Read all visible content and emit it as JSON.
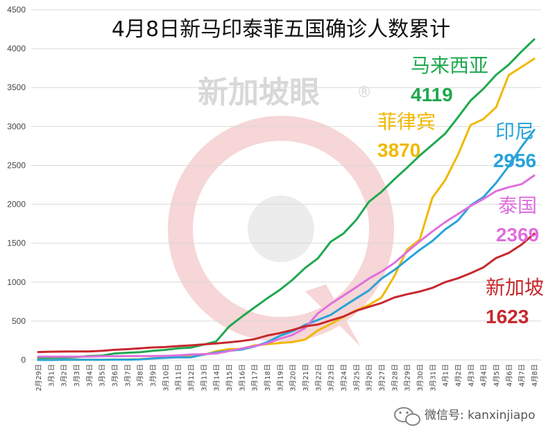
{
  "chart_data": {
    "type": "line",
    "title": "4月8日新马印泰菲五国确诊人数累计",
    "ylim": [
      0,
      4500
    ],
    "yticks": [
      0,
      500,
      1000,
      1500,
      2000,
      2500,
      3000,
      3500,
      4000,
      4500
    ],
    "categories": [
      "2月29日",
      "3月1日",
      "3月2日",
      "3月3日",
      "3月4日",
      "3月5日",
      "3月6日",
      "3月7日",
      "3月8日",
      "3月9日",
      "3月10日",
      "3月11日",
      "3月12日",
      "3月13日",
      "3月14日",
      "3月15日",
      "3月16日",
      "3月17日",
      "3月18日",
      "3月19日",
      "3月20日",
      "3月21日",
      "3月22日",
      "3月23日",
      "3月24日",
      "3月25日",
      "3月26日",
      "3月27日",
      "3月28日",
      "3月29日",
      "3月30日",
      "3月31日",
      "4月1日",
      "4月2日",
      "4月3日",
      "4月4日",
      "4月5日",
      "4月6日",
      "4月7日",
      "4月8日"
    ],
    "series": [
      {
        "name": "马来西亚",
        "label_value": "4119",
        "color": "#1fa84f",
        "values": [
          25,
          29,
          29,
          36,
          50,
          55,
          83,
          93,
          99,
          117,
          129,
          149,
          158,
          197,
          238,
          428,
          553,
          673,
          790,
          900,
          1030,
          1183,
          1306,
          1518,
          1624,
          1796,
          2031,
          2161,
          2320,
          2470,
          2626,
          2766,
          2908,
          3116,
          3333,
          3483,
          3662,
          3793,
          3963,
          4119
        ]
      },
      {
        "name": "菲律宾",
        "label_value": "3870",
        "color": "#f0b800",
        "values": [
          3,
          3,
          3,
          3,
          3,
          3,
          5,
          6,
          10,
          20,
          33,
          49,
          52,
          64,
          111,
          140,
          142,
          187,
          202,
          217,
          230,
          262,
          380,
          462,
          552,
          636,
          707,
          803,
          1075,
          1418,
          1546,
          2084,
          2311,
          2633,
          3018,
          3094,
          3246,
          3660,
          3764,
          3870
        ]
      },
      {
        "name": "印尼",
        "label_value": "2956",
        "color": "#27a3d9",
        "values": [
          0,
          0,
          2,
          2,
          2,
          2,
          4,
          4,
          6,
          19,
          27,
          34,
          34,
          69,
          96,
          117,
          134,
          172,
          227,
          309,
          369,
          450,
          514,
          579,
          686,
          790,
          893,
          1046,
          1155,
          1285,
          1414,
          1528,
          1677,
          1790,
          1986,
          2092,
          2273,
          2491,
          2738,
          2956
        ]
      },
      {
        "name": "泰国",
        "label_value": "2369",
        "color": "#de6fde",
        "values": [
          42,
          42,
          43,
          43,
          43,
          47,
          48,
          50,
          50,
          50,
          53,
          59,
          70,
          75,
          82,
          114,
          147,
          177,
          212,
          272,
          322,
          411,
          599,
          721,
          827,
          934,
          1045,
          1136,
          1245,
          1388,
          1524,
          1651,
          1771,
          1875,
          1978,
          2067,
          2169,
          2220,
          2258,
          2369
        ]
      },
      {
        "name": "新加坡",
        "label_value": "1623",
        "color": "#c6282d",
        "values": [
          102,
          106,
          108,
          110,
          110,
          117,
          130,
          138,
          150,
          160,
          166,
          178,
          187,
          200,
          212,
          226,
          243,
          266,
          313,
          345,
          385,
          432,
          455,
          509,
          558,
          631,
          683,
          732,
          802,
          844,
          879,
          926,
          1000,
          1049,
          1114,
          1189,
          1309,
          1375,
          1481,
          1623
        ]
      }
    ],
    "grid": true,
    "legend": "inline labels at right"
  },
  "watermark": {
    "text": "新加坡眼",
    "mark": "®"
  },
  "footer": {
    "label": "微信号: kanxinjiapo",
    "icon": "wechat-icon"
  }
}
